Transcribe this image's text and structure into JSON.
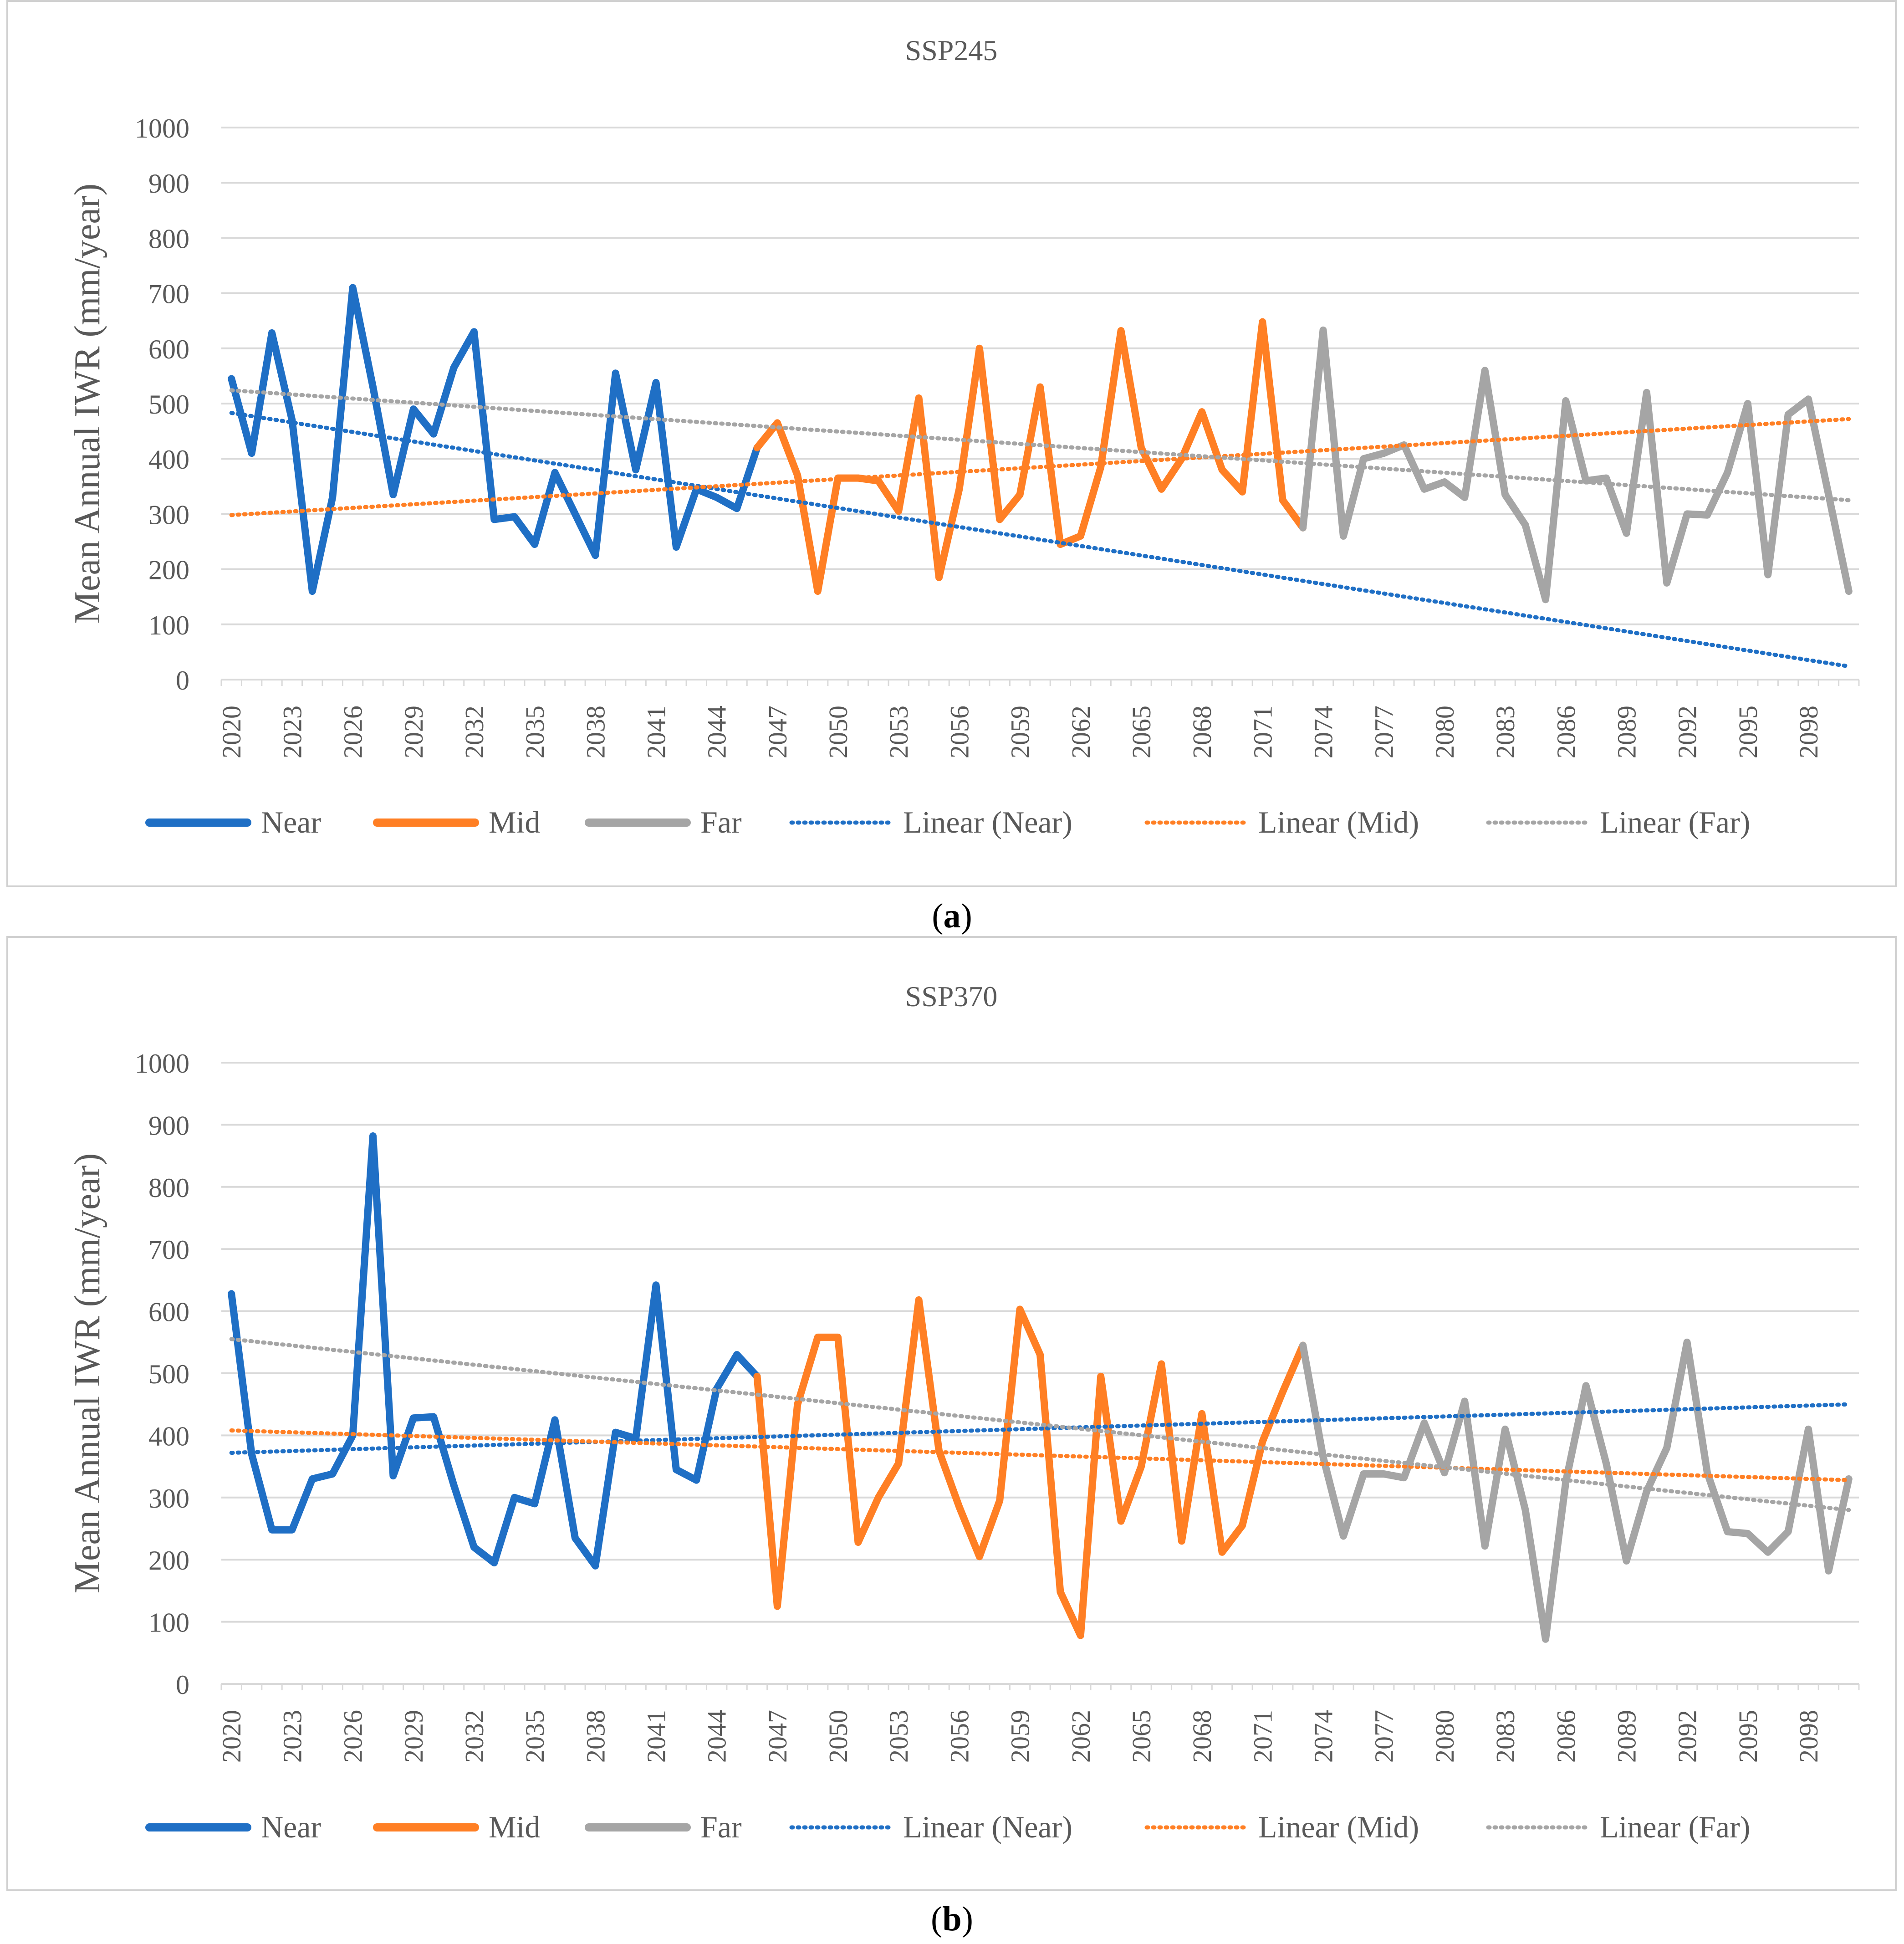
{
  "charts": [
    {
      "id": "a",
      "panel_label": "a",
      "chart_data": {
        "type": "line",
        "title": "SSP245",
        "ylabel": "Mean Annual IWR (mm/year)",
        "xlabel": "",
        "ylim": [
          0,
          1000
        ],
        "yticks": [
          0,
          100,
          200,
          300,
          400,
          500,
          600,
          700,
          800,
          900,
          1000
        ],
        "x_tick_labels": [
          "2020",
          "2023",
          "2026",
          "2029",
          "2032",
          "2035",
          "2038",
          "2041",
          "2044",
          "2047",
          "2050",
          "2053",
          "2056",
          "2059",
          "2062",
          "2065",
          "2068",
          "2071",
          "2074",
          "2077",
          "2080",
          "2083",
          "2086",
          "2089",
          "2092",
          "2095",
          "2098"
        ],
        "grid": true,
        "legend_position": "bottom",
        "series": [
          {
            "name": "Near",
            "style": "solid",
            "color": "#1f6fc5",
            "start_year": 2020,
            "values": [
              545,
              410,
              628,
              470,
              160,
              330,
              710,
              530,
              335,
              490,
              445,
              565,
              630,
              290,
              295,
              245,
              375,
              300,
              225,
              555,
              380,
              538,
              240,
              345,
              330,
              310,
              420
            ]
          },
          {
            "name": "Mid",
            "style": "solid",
            "color": "#ff7f24",
            "start_year": 2046,
            "values": [
              420,
              465,
              370,
              160,
              365,
              365,
              360,
              305,
              510,
              185,
              345,
              600,
              290,
              335,
              530,
              245,
              260,
              385,
              632,
              420,
              345,
              400,
              485,
              380,
              340,
              648,
              325,
              275
            ]
          },
          {
            "name": "Far",
            "style": "solid",
            "color": "#a5a5a5",
            "start_year": 2073,
            "values": [
              275,
              633,
              260,
              400,
              410,
              425,
              345,
              358,
              330,
              560,
              335,
              280,
              145,
              505,
              360,
              365,
              265,
              520,
              175,
              300,
              298,
              375,
              500,
              190,
              480,
              508,
              335,
              160
            ]
          },
          {
            "name": "Linear (Near)",
            "style": "dotted",
            "color": "#1f6fc5",
            "from": [
              2020,
              483
            ],
            "to": [
              2100,
              24
            ]
          },
          {
            "name": "Linear (Mid)",
            "style": "dotted",
            "color": "#ff7f24",
            "from": [
              2020,
              298
            ],
            "to": [
              2100,
              472
            ]
          },
          {
            "name": "Linear (Far)",
            "style": "dotted",
            "color": "#a5a5a5",
            "from": [
              2020,
              524
            ],
            "to": [
              2100,
              325
            ]
          }
        ]
      }
    },
    {
      "id": "b",
      "panel_label": "b",
      "chart_data": {
        "type": "line",
        "title": "SSP370",
        "ylabel": "Mean Annual IWR (mm/year)",
        "xlabel": "",
        "ylim": [
          0,
          1000
        ],
        "yticks": [
          0,
          100,
          200,
          300,
          400,
          500,
          600,
          700,
          800,
          900,
          1000
        ],
        "x_tick_labels": [
          "2020",
          "2023",
          "2026",
          "2029",
          "2032",
          "2035",
          "2038",
          "2041",
          "2044",
          "2047",
          "2050",
          "2053",
          "2056",
          "2059",
          "2062",
          "2065",
          "2068",
          "2071",
          "2074",
          "2077",
          "2080",
          "2083",
          "2086",
          "2089",
          "2092",
          "2095",
          "2098"
        ],
        "grid": true,
        "legend_position": "bottom",
        "series": [
          {
            "name": "Near",
            "style": "solid",
            "color": "#1f6fc5",
            "start_year": 2020,
            "values": [
              628,
              370,
              248,
              248,
              330,
              338,
              400,
              882,
              335,
              428,
              430,
              320,
              220,
              195,
              300,
              290,
              425,
              235,
              190,
              405,
              395,
              642,
              345,
              328,
              475,
              530,
              495
            ]
          },
          {
            "name": "Mid",
            "style": "solid",
            "color": "#ff7f24",
            "start_year": 2046,
            "values": [
              495,
              125,
              450,
              558,
              558,
              228,
              300,
              355,
              618,
              375,
              285,
              205,
              295,
              603,
              530,
              148,
              78,
              495,
              262,
              350,
              515,
              230,
              435,
              212,
              255,
              390,
              470,
              545
            ]
          },
          {
            "name": "Far",
            "style": "solid",
            "color": "#a5a5a5",
            "start_year": 2073,
            "values": [
              545,
              365,
              238,
              338,
              338,
              332,
              420,
              340,
              455,
              222,
              410,
              280,
              72,
              325,
              480,
              355,
              198,
              310,
              380,
              550,
              340,
              245,
              242,
              212,
              245,
              410,
              182,
              330
            ]
          },
          {
            "name": "Linear (Near)",
            "style": "dotted",
            "color": "#1f6fc5",
            "from": [
              2020,
              372
            ],
            "to": [
              2100,
              450
            ]
          },
          {
            "name": "Linear (Mid)",
            "style": "dotted",
            "color": "#ff7f24",
            "from": [
              2020,
              408
            ],
            "to": [
              2100,
              328
            ]
          },
          {
            "name": "Linear (Far)",
            "style": "dotted",
            "color": "#a5a5a5",
            "from": [
              2020,
              555
            ],
            "to": [
              2100,
              280
            ]
          }
        ]
      }
    }
  ]
}
